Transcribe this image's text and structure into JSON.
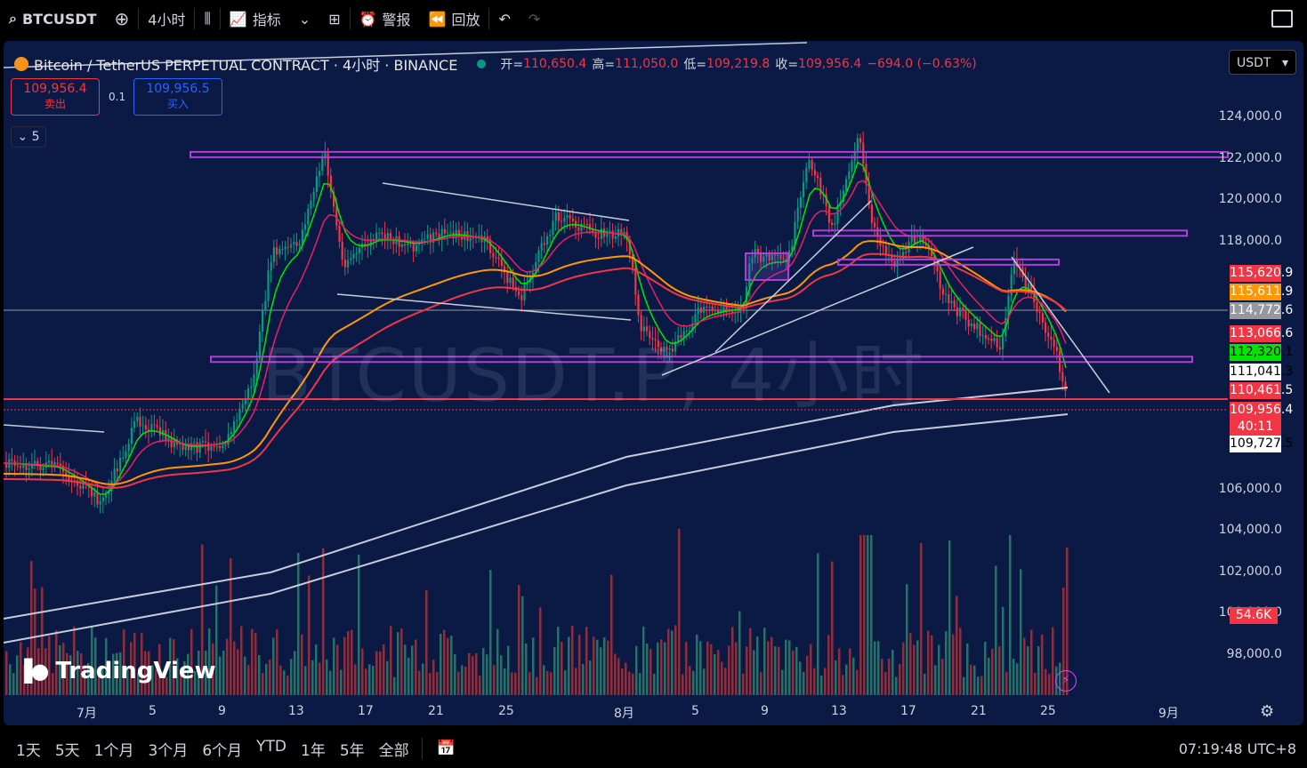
{
  "toolbar": {
    "symbol": "BTCUSDT",
    "interval": "4小时",
    "indicators_label": "指标",
    "alert_label": "警报",
    "replay_label": "回放"
  },
  "legend": {
    "title": "Bitcoin / TetherUS PERPETUAL CONTRACT · 4小时 · BINANCE",
    "open_label": "开=",
    "open": "110,650.4",
    "high_label": "高=",
    "high": "111,050.0",
    "low_label": "低=",
    "low": "109,219.8",
    "close_label": "收=",
    "close": "109,956.4",
    "change": "−694.0 (−0.63%)"
  },
  "trade": {
    "sell_price": "109,956.4",
    "sell_label": "卖出",
    "spread": "0.1",
    "buy_price": "109,956.5",
    "buy_label": "买入"
  },
  "indicator_collapse": "5",
  "currency": "USDT",
  "watermark": "BTCUSDT.P, 4小时",
  "logo": "TradingView",
  "y_axis": [
    "124,000.0",
    "122,000.0",
    "120,000.0",
    "118,000.0",
    "106,000.0",
    "104,000.0",
    "102,000.0",
    "100,000.0",
    "98,000.0"
  ],
  "price_badges": [
    {
      "value": "115,620.9",
      "color": "#f23645",
      "price": 115620.9
    },
    {
      "value": "115,611.9",
      "color": "#ff9800",
      "price": 115611.9
    },
    {
      "value": "114,772.6",
      "color": "#9598a1",
      "price": 114772.6
    },
    {
      "value": "113,066.6",
      "color": "#f23645",
      "price": 113066.6
    },
    {
      "value": "112,320.1",
      "color": "#00e600",
      "price": 112320.1
    },
    {
      "value": "111,041.3",
      "color": "#ffffff",
      "price": 111041.3
    },
    {
      "value": "110,461.5",
      "color": "#f23645",
      "price": 110461.5
    },
    {
      "value": "109,956.4",
      "color": "#f23645",
      "price": 109956.4
    },
    {
      "value": "109,727.5",
      "color": "#ffffff",
      "price": 109727.5
    }
  ],
  "countdown": "40:11",
  "volume_badge": "54.6K",
  "x_axis": [
    "7月",
    "5",
    "9",
    "13",
    "17",
    "21",
    "25",
    "8月",
    "5",
    "9",
    "13",
    "17",
    "21",
    "25",
    "9月"
  ],
  "timeframes": [
    "1天",
    "5天",
    "1个月",
    "3个月",
    "6个月",
    "YTD",
    "1年",
    "5年",
    "全部"
  ],
  "clock": "07:19:48 UTC+8",
  "chart_data": {
    "type": "candlestick",
    "y_range": [
      97000,
      126000
    ],
    "horizontal_levels": [
      122200,
      118400,
      117000,
      112300
    ],
    "current_price": 109956.4
  }
}
